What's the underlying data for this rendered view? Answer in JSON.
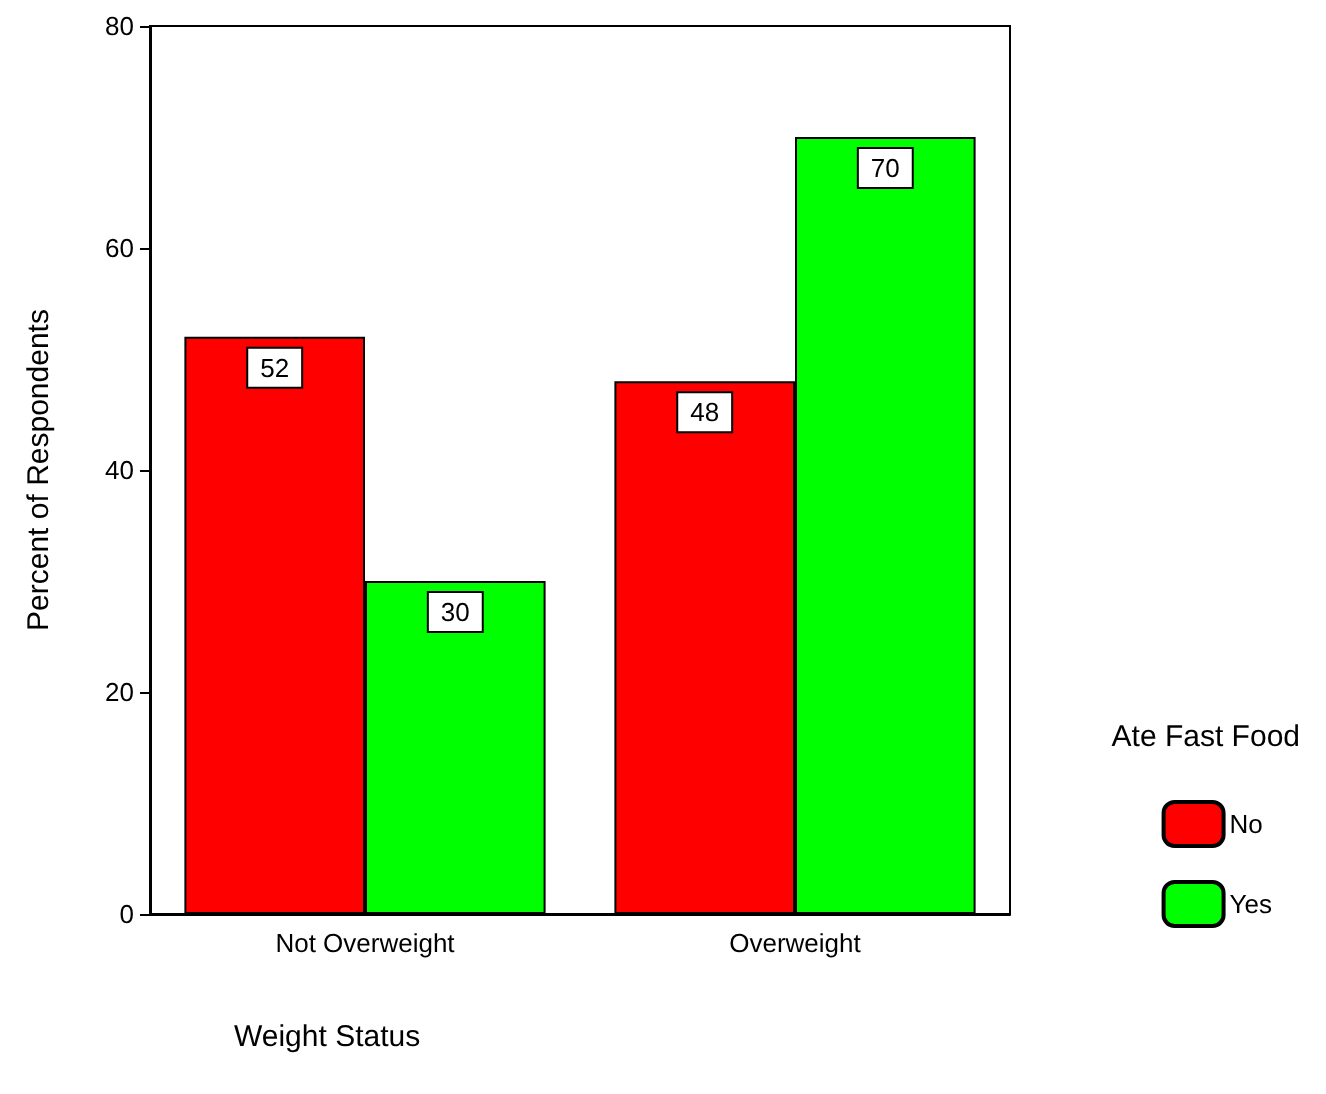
{
  "chart_data": {
    "type": "bar",
    "xlabel": "Weight Status",
    "ylabel": "Percent of Respondents",
    "legend_title": "Ate Fast Food",
    "categories": [
      "Not Overweight",
      "Overweight"
    ],
    "series": [
      {
        "name": "No",
        "color": "#ff0000",
        "values": [
          52,
          48
        ]
      },
      {
        "name": "Yes",
        "color": "#00ff00",
        "values": [
          30,
          70
        ]
      }
    ],
    "ylim": [
      0,
      80
    ],
    "yticks": [
      0,
      20,
      40,
      60,
      80
    ],
    "grid": false,
    "legend": "right",
    "data_labels": true
  }
}
